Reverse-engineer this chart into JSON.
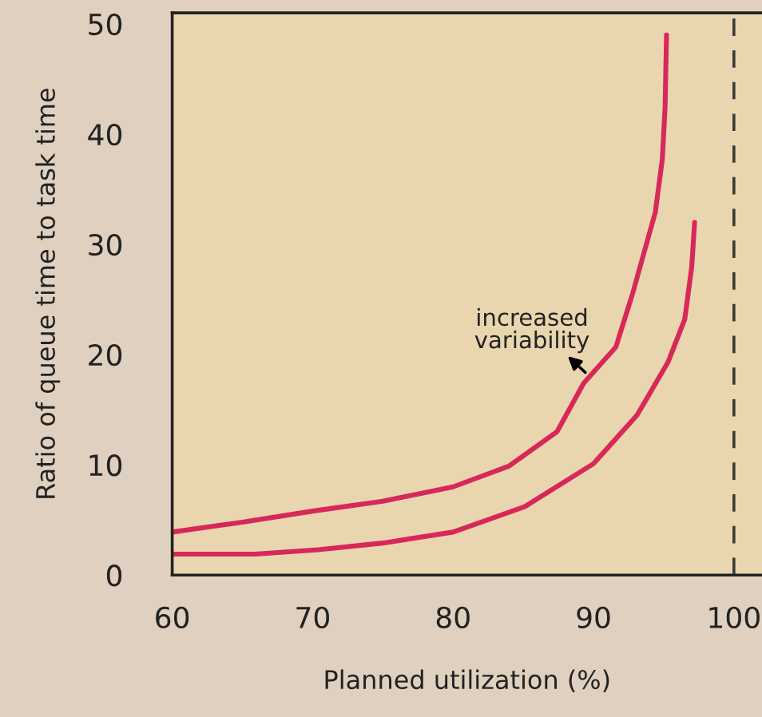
{
  "chart_data": {
    "type": "line",
    "xlabel": "Planned utilization (%)",
    "ylabel": "Ratio of queue time to task time",
    "xlim": [
      60,
      102
    ],
    "ylim": [
      0,
      51
    ],
    "xticks": [
      60,
      70,
      80,
      90,
      100
    ],
    "yticks": [
      0,
      10,
      20,
      30,
      40,
      50
    ],
    "series": [
      {
        "color": "#d8285a",
        "x": [
          60,
          65,
          70,
          75,
          80,
          84,
          87.4,
          89.3,
          91.6,
          92.8,
          94.4,
          94.9,
          95.1,
          95.2
        ],
        "values": [
          3.9,
          4.8,
          5.8,
          6.7,
          8.0,
          9.9,
          13,
          17.4,
          20.7,
          25.6,
          32.9,
          37.7,
          42.5,
          49
        ]
      },
      {
        "color": "#d8285a",
        "x": [
          60,
          65.9,
          70.4,
          75,
          80,
          85.1,
          90,
          93.1,
          95.3,
          96.5,
          97.0,
          97.2
        ],
        "values": [
          1.9,
          1.9,
          2.3,
          2.9,
          3.9,
          6.2,
          10.1,
          14.5,
          19.3,
          23.2,
          28,
          32
        ]
      }
    ],
    "ref_lines": [
      {
        "axis": "x",
        "value": 100,
        "color": "#3a3a3a",
        "line_style": "dashed"
      }
    ],
    "annotations": [
      "increased\nvariability"
    ],
    "grid": false,
    "legend": false,
    "marker": "none",
    "line_style": "solid"
  }
}
